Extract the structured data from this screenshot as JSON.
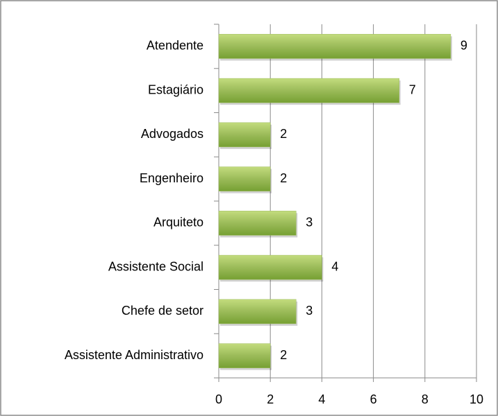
{
  "chart_data": {
    "type": "bar",
    "orientation": "horizontal",
    "categories": [
      "Atendente",
      "Estagiário",
      "Advogados",
      "Engenheiro",
      "Arquiteto",
      "Assistente Social",
      "Chefe de setor",
      "Assistente Administrativo"
    ],
    "values": [
      9,
      7,
      2,
      2,
      3,
      4,
      3,
      2
    ],
    "color": "#9bbb59",
    "xlim": [
      0,
      10
    ],
    "xticks": [
      0,
      2,
      4,
      6,
      8,
      10
    ],
    "grid": true
  }
}
